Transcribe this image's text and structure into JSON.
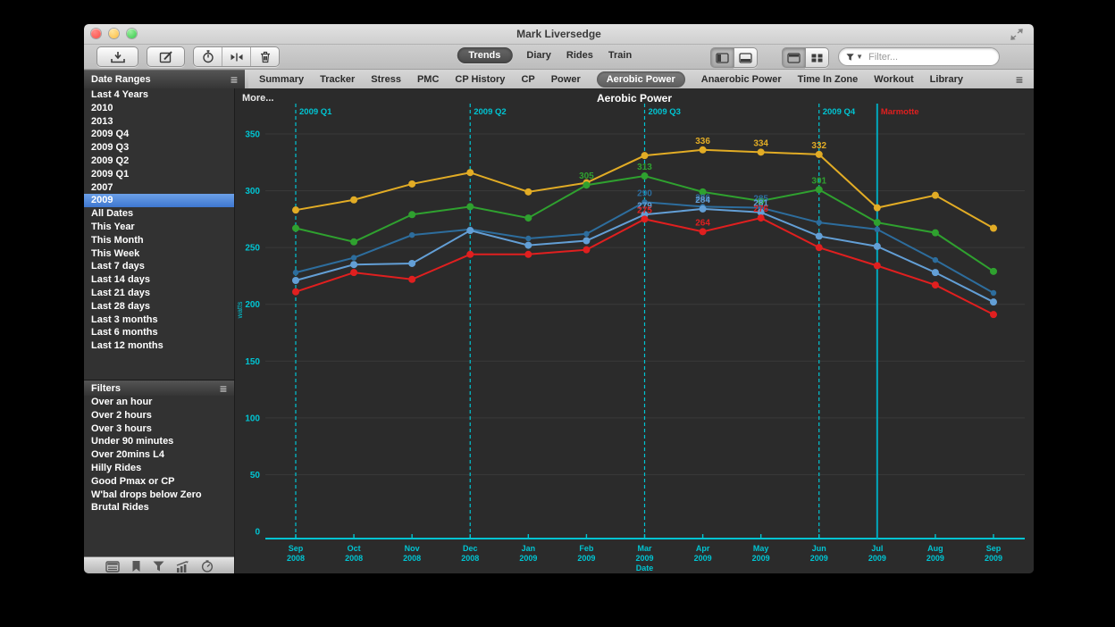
{
  "window": {
    "title": "Mark Liversedge"
  },
  "toolbar": {
    "left_buttons": [
      "download-icon",
      "compose-icon"
    ],
    "group_buttons": [
      "stopwatch-icon",
      "split-icon",
      "trash-icon"
    ],
    "views": [
      "Trends",
      "Diary",
      "Rides",
      "Train"
    ],
    "active_view": "Trends",
    "right_group_1": [
      "panel-left-icon",
      "panel-bottom-icon"
    ],
    "right_group_2": [
      "tile-single-icon",
      "tile-grid-icon"
    ],
    "filter_placeholder": "Filter..."
  },
  "tabs": {
    "items": [
      "Summary",
      "Tracker",
      "Stress",
      "PMC",
      "CP History",
      "CP",
      "Power",
      "Aerobic Power",
      "Anaerobic Power",
      "Time In Zone",
      "Workout",
      "Library"
    ],
    "active": "Aerobic Power"
  },
  "sidebar": {
    "date_ranges": {
      "title": "Date Ranges",
      "items": [
        "Last 4 Years",
        "2010",
        "2013",
        "2009 Q4",
        "2009 Q3",
        "2009 Q2",
        "2009 Q1",
        "2007",
        "2009",
        "All Dates",
        "This Year",
        "This Month",
        "This Week",
        "Last 7 days",
        "Last 14 days",
        "Last 21 days",
        "Last 28 days",
        "Last 3 months",
        "Last 6 months",
        "Last 12 months"
      ],
      "selected": "2009"
    },
    "filters": {
      "title": "Filters",
      "items": [
        "Over an hour",
        "Over 2 hours",
        "Over 3 hours",
        "Under 90 minutes",
        "Over 20mins L4",
        "Hilly Rides",
        "Good Pmax or CP",
        "W'bal drops below Zero",
        "Brutal Rides"
      ]
    },
    "bottom_icons": [
      "summary-icon",
      "bookmark-icon",
      "funnel-icon",
      "chart-bars-icon",
      "gauge-icon"
    ]
  },
  "chart_data": {
    "type": "line",
    "title": "Aerobic Power",
    "more_label": "More...",
    "xlabel": "Date",
    "ylabel": "watts",
    "ylim": [
      0,
      350
    ],
    "ytick_step": 50,
    "grid": true,
    "legend": "none",
    "axis_color": "#00c4d2",
    "grid_color": "#3a3a3a",
    "background": "#2b2b2b",
    "x_categories": [
      [
        "Sep",
        "2008"
      ],
      [
        "Oct",
        "2008"
      ],
      [
        "Nov",
        "2008"
      ],
      [
        "Dec",
        "2008"
      ],
      [
        "Jan",
        "2009"
      ],
      [
        "Feb",
        "2009"
      ],
      [
        "Mar",
        "2009"
      ],
      [
        "Apr",
        "2009"
      ],
      [
        "May",
        "2009"
      ],
      [
        "Jun",
        "2009"
      ],
      [
        "Jul",
        "2009"
      ],
      [
        "Aug",
        "2009"
      ],
      [
        "Sep",
        "2009"
      ]
    ],
    "series": [
      {
        "name": "series-yellow",
        "color": "#e2ac25",
        "values": [
          283,
          292,
          306,
          316,
          299,
          307,
          331,
          336,
          334,
          332,
          285,
          296,
          267
        ]
      },
      {
        "name": "series-green",
        "color": "#2fa12f",
        "values": [
          267,
          255,
          279,
          286,
          276,
          305,
          313,
          299,
          291,
          301,
          272,
          263,
          229
        ]
      },
      {
        "name": "series-dark-blue",
        "color": "#2d6d9d",
        "values": [
          228,
          241,
          261,
          266,
          258,
          262,
          290,
          286,
          285,
          272,
          266,
          239,
          210
        ]
      },
      {
        "name": "series-light-blue",
        "color": "#639fd6",
        "values": [
          221,
          235,
          236,
          265,
          252,
          256,
          279,
          284,
          281,
          260,
          251,
          228,
          202
        ]
      },
      {
        "name": "series-red",
        "color": "#e01f1f",
        "values": [
          211,
          228,
          222,
          244,
          244,
          248,
          275,
          264,
          276,
          250,
          234,
          217,
          191
        ]
      }
    ],
    "point_labels": [
      {
        "series": 0,
        "index": 7,
        "text": "336"
      },
      {
        "series": 0,
        "index": 8,
        "text": "334"
      },
      {
        "series": 0,
        "index": 9,
        "text": "332"
      },
      {
        "series": 1,
        "index": 5,
        "text": "305"
      },
      {
        "series": 1,
        "index": 6,
        "text": "313"
      },
      {
        "series": 1,
        "index": 9,
        "text": "301"
      },
      {
        "series": 2,
        "index": 6,
        "text": "290"
      },
      {
        "series": 2,
        "index": 7,
        "text": "286"
      },
      {
        "series": 2,
        "index": 8,
        "text": "285"
      },
      {
        "series": 3,
        "index": 6,
        "text": "279"
      },
      {
        "series": 3,
        "index": 7,
        "text": "284"
      },
      {
        "series": 3,
        "index": 8,
        "text": "281"
      },
      {
        "series": 4,
        "index": 6,
        "text": "275"
      },
      {
        "series": 4,
        "index": 7,
        "text": "264"
      },
      {
        "series": 4,
        "index": 8,
        "text": "276"
      }
    ],
    "annotations": [
      {
        "label": "2009 Q1",
        "x_index": 0,
        "style": "dashed",
        "line_color": "#00c4d2",
        "label_color": "#00c4d2"
      },
      {
        "label": "2009 Q2",
        "x_index": 3,
        "style": "dashed",
        "line_color": "#00c4d2",
        "label_color": "#00c4d2"
      },
      {
        "label": "2009 Q3",
        "x_index": 6,
        "style": "dashed",
        "line_color": "#00c4d2",
        "label_color": "#00c4d2"
      },
      {
        "label": "2009 Q4",
        "x_index": 9,
        "style": "dashed",
        "line_color": "#00c4d2",
        "label_color": "#00c4d2"
      },
      {
        "label": "Marmotte",
        "x_index": 10,
        "style": "solid",
        "line_color": "#00a9bd",
        "label_color": "#e01f1f"
      }
    ]
  }
}
